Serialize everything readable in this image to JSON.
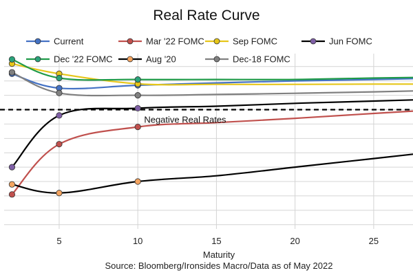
{
  "chart_data": {
    "type": "line",
    "title": "Real Rate Curve",
    "xlabel": "Maturity",
    "source": "Source: Bloomberg/Ironsides Macro/Data as of May 2022",
    "xlim": [
      1.5,
      27.5
    ],
    "ylim": [
      -4.15,
      1.95
    ],
    "x_ticks": [
      5,
      10,
      15,
      20,
      25
    ],
    "grid": true,
    "legend_position": "top",
    "reference_line": {
      "y": 0,
      "style": "dashed",
      "color": "#000000"
    },
    "annotations": [
      {
        "text": "Negative Real Rates",
        "x": 10.4,
        "y": -0.45
      }
    ],
    "series": [
      {
        "name": "Current",
        "color": "#4472C4",
        "x": [
          2,
          5,
          10,
          15,
          20,
          25,
          27.5
        ],
        "y": [
          1.25,
          0.75,
          0.85,
          0.93,
          1.0,
          1.05,
          1.08
        ],
        "markers": [
          2,
          5,
          10
        ]
      },
      {
        "name": "Mar '22 FOMC",
        "color": "#C0504D",
        "x": [
          2,
          5,
          10,
          15,
          20,
          25,
          27.5
        ],
        "y": [
          -2.95,
          -1.2,
          -0.6,
          -0.45,
          -0.3,
          -0.13,
          -0.05
        ],
        "markers": [
          2,
          5,
          10
        ]
      },
      {
        "name": "Sep FOMC",
        "color": "#E6C619",
        "x": [
          2,
          5,
          10,
          15,
          20,
          25,
          27.5
        ],
        "y": [
          1.6,
          1.25,
          0.9,
          0.88,
          0.88,
          0.89,
          0.89
        ],
        "markers": [
          2,
          5,
          10
        ]
      },
      {
        "name": "Jun FOMC",
        "color": "#000000",
        "marker_color": "#7F5FA6",
        "x": [
          2,
          5,
          10,
          15,
          20,
          25,
          27.5
        ],
        "y": [
          -2.0,
          -0.2,
          0.05,
          0.12,
          0.22,
          0.3,
          0.34
        ],
        "markers": [
          2,
          5,
          10
        ]
      },
      {
        "name": "Dec '22 FOMC",
        "color": "#1F9A48",
        "marker_color": "#2AA27A",
        "x": [
          2,
          5,
          10,
          15,
          20,
          25,
          27.5
        ],
        "y": [
          1.75,
          1.1,
          1.05,
          1.05,
          1.05,
          1.1,
          1.12
        ],
        "markers": [
          2,
          5,
          10
        ]
      },
      {
        "name": "Aug '20",
        "color": "#000000",
        "marker_color": "#F4A460",
        "x": [
          2,
          5,
          10,
          15,
          20,
          25,
          27.5
        ],
        "y": [
          -2.6,
          -2.9,
          -2.5,
          -2.3,
          -2.0,
          -1.7,
          -1.55
        ],
        "markers": [
          2,
          5,
          10
        ]
      },
      {
        "name": "Dec-18 FOMC",
        "color": "#808080",
        "x": [
          2,
          5,
          10,
          15,
          20,
          25,
          27.5
        ],
        "y": [
          1.3,
          0.58,
          0.5,
          0.53,
          0.57,
          0.62,
          0.65
        ],
        "markers": [
          2,
          5,
          10
        ]
      }
    ]
  }
}
